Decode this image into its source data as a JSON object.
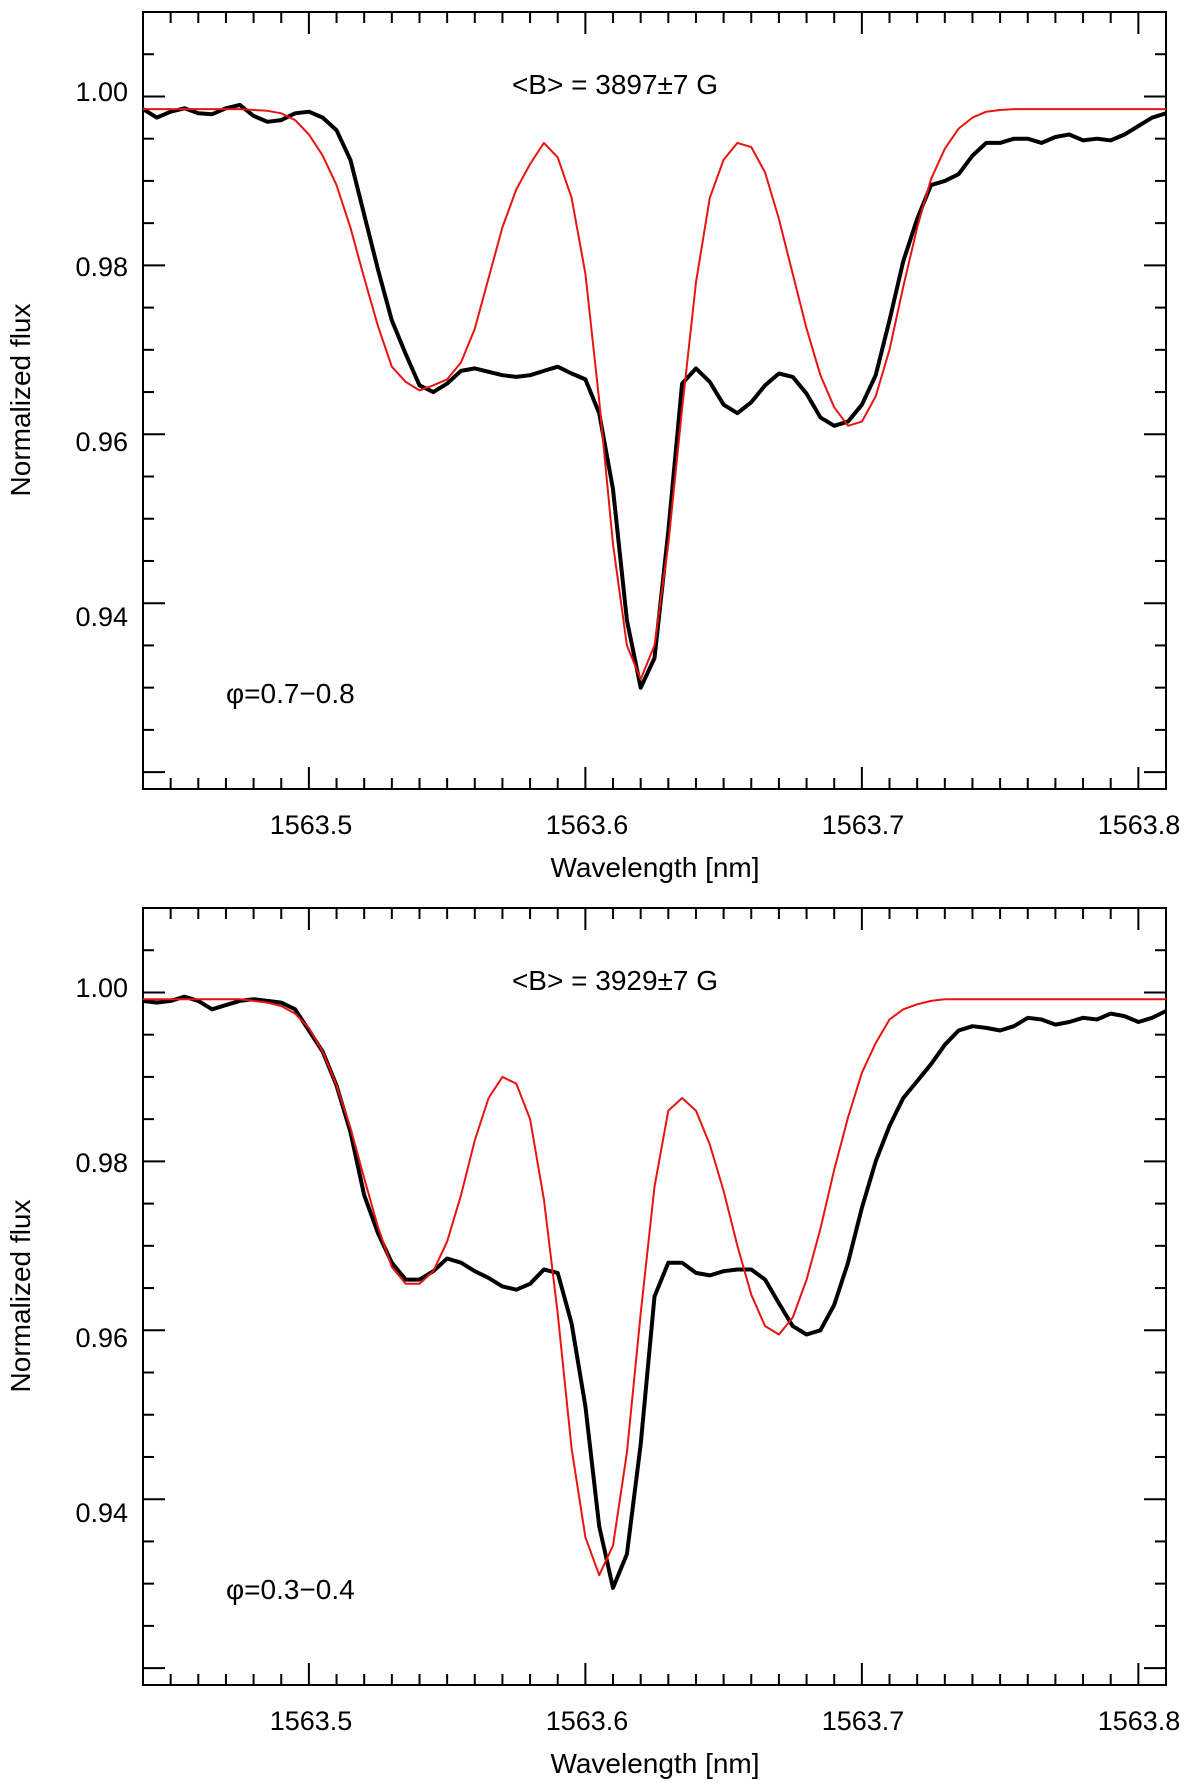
{
  "chart_data": [
    {
      "type": "line",
      "title": "",
      "xlabel": "Wavelength [nm]",
      "ylabel": "Normalized flux",
      "xlim": [
        1563.44,
        1563.81
      ],
      "ylim": [
        0.918,
        1.01
      ],
      "x_ticks": [
        "1563.5",
        "1563.6",
        "1563.7",
        "1563.8"
      ],
      "x_tick_values": [
        1563.5,
        1563.6,
        1563.7,
        1563.8
      ],
      "y_ticks": [
        "1.00",
        "0.98",
        "0.96",
        "0.94"
      ],
      "y_tick_values": [
        1.0,
        0.98,
        0.96,
        0.94
      ],
      "annotations": {
        "field": "<B> = 3897±7 G",
        "phase": "φ=0.7−0.8"
      },
      "series": [
        {
          "color": "#000000",
          "x": [
            1563.44,
            1563.445,
            1563.45,
            1563.455,
            1563.46,
            1563.465,
            1563.47,
            1563.475,
            1563.48,
            1563.485,
            1563.49,
            1563.495,
            1563.5,
            1563.505,
            1563.51,
            1563.515,
            1563.52,
            1563.525,
            1563.53,
            1563.535,
            1563.54,
            1563.545,
            1563.55,
            1563.555,
            1563.56,
            1563.565,
            1563.57,
            1563.575,
            1563.58,
            1563.585,
            1563.59,
            1563.595,
            1563.6,
            1563.605,
            1563.61,
            1563.615,
            1563.62,
            1563.625,
            1563.63,
            1563.635,
            1563.64,
            1563.645,
            1563.65,
            1563.655,
            1563.66,
            1563.665,
            1563.67,
            1563.675,
            1563.68,
            1563.685,
            1563.69,
            1563.695,
            1563.7,
            1563.705,
            1563.71,
            1563.715,
            1563.72,
            1563.725,
            1563.73,
            1563.735,
            1563.74,
            1563.745,
            1563.75,
            1563.755,
            1563.76,
            1563.765,
            1563.77,
            1563.775,
            1563.78,
            1563.785,
            1563.79,
            1563.795,
            1563.8,
            1563.805,
            1563.81
          ],
          "y": [
            0.9985,
            0.9975,
            0.9982,
            0.9986,
            0.998,
            0.9979,
            0.9986,
            0.999,
            0.9977,
            0.997,
            0.9972,
            0.998,
            0.9982,
            0.9975,
            0.996,
            0.9925,
            0.986,
            0.9795,
            0.9735,
            0.9695,
            0.9658,
            0.965,
            0.966,
            0.9675,
            0.9678,
            0.9674,
            0.967,
            0.9668,
            0.967,
            0.9675,
            0.968,
            0.9672,
            0.9665,
            0.9625,
            0.9535,
            0.938,
            0.93,
            0.9335,
            0.9485,
            0.966,
            0.9678,
            0.9662,
            0.9635,
            0.9625,
            0.9638,
            0.9658,
            0.9672,
            0.9668,
            0.9648,
            0.962,
            0.961,
            0.9615,
            0.9635,
            0.967,
            0.9735,
            0.9805,
            0.9855,
            0.9895,
            0.99,
            0.9908,
            0.993,
            0.9945,
            0.9945,
            0.995,
            0.995,
            0.9945,
            0.9952,
            0.9955,
            0.9948,
            0.995,
            0.9948,
            0.9955,
            0.9965,
            0.9975,
            0.998
          ]
        },
        {
          "color": "#e8140f",
          "x": [
            1563.44,
            1563.445,
            1563.45,
            1563.455,
            1563.46,
            1563.465,
            1563.47,
            1563.475,
            1563.48,
            1563.485,
            1563.49,
            1563.495,
            1563.5,
            1563.505,
            1563.51,
            1563.515,
            1563.52,
            1563.525,
            1563.53,
            1563.535,
            1563.54,
            1563.545,
            1563.55,
            1563.555,
            1563.56,
            1563.565,
            1563.57,
            1563.575,
            1563.58,
            1563.585,
            1563.59,
            1563.595,
            1563.6,
            1563.605,
            1563.61,
            1563.615,
            1563.62,
            1563.625,
            1563.63,
            1563.635,
            1563.64,
            1563.645,
            1563.65,
            1563.655,
            1563.66,
            1563.665,
            1563.67,
            1563.675,
            1563.68,
            1563.685,
            1563.69,
            1563.695,
            1563.7,
            1563.705,
            1563.71,
            1563.715,
            1563.72,
            1563.725,
            1563.73,
            1563.735,
            1563.74,
            1563.745,
            1563.75,
            1563.755,
            1563.76,
            1563.765,
            1563.77,
            1563.775,
            1563.78,
            1563.785,
            1563.79,
            1563.795,
            1563.8,
            1563.805,
            1563.81
          ],
          "y": [
            0.9985,
            0.9985,
            0.9985,
            0.9985,
            0.9985,
            0.9985,
            0.9985,
            0.9985,
            0.9984,
            0.9983,
            0.998,
            0.9972,
            0.9955,
            0.993,
            0.9895,
            0.9845,
            0.9785,
            0.9728,
            0.968,
            0.9662,
            0.9652,
            0.9658,
            0.9665,
            0.9685,
            0.9725,
            0.9785,
            0.9845,
            0.989,
            0.992,
            0.9945,
            0.9928,
            0.988,
            0.979,
            0.964,
            0.947,
            0.935,
            0.931,
            0.935,
            0.947,
            0.963,
            0.978,
            0.988,
            0.9925,
            0.9945,
            0.994,
            0.991,
            0.9855,
            0.979,
            0.9725,
            0.967,
            0.9632,
            0.961,
            0.9615,
            0.9645,
            0.97,
            0.9775,
            0.9845,
            0.9902,
            0.9938,
            0.9962,
            0.9975,
            0.9982,
            0.9984,
            0.9985,
            0.9985,
            0.9985,
            0.9985,
            0.9985,
            0.9985,
            0.9985,
            0.9985,
            0.9985,
            0.9985,
            0.9985,
            0.9985
          ]
        }
      ]
    },
    {
      "type": "line",
      "title": "",
      "xlabel": "Wavelength [nm]",
      "ylabel": "Normalized flux",
      "xlim": [
        1563.44,
        1563.81
      ],
      "ylim": [
        0.918,
        1.01
      ],
      "x_ticks": [
        "1563.5",
        "1563.6",
        "1563.7",
        "1563.8"
      ],
      "x_tick_values": [
        1563.5,
        1563.6,
        1563.7,
        1563.8
      ],
      "y_ticks": [
        "1.00",
        "0.98",
        "0.96",
        "0.94"
      ],
      "y_tick_values": [
        1.0,
        0.98,
        0.96,
        0.94
      ],
      "annotations": {
        "field": "<B> = 3929±7 G",
        "phase": "φ=0.3−0.4"
      },
      "series": [
        {
          "color": "#000000",
          "x": [
            1563.44,
            1563.445,
            1563.45,
            1563.455,
            1563.46,
            1563.465,
            1563.47,
            1563.475,
            1563.48,
            1563.485,
            1563.49,
            1563.495,
            1563.5,
            1563.505,
            1563.51,
            1563.515,
            1563.52,
            1563.525,
            1563.53,
            1563.535,
            1563.54,
            1563.545,
            1563.55,
            1563.555,
            1563.56,
            1563.565,
            1563.57,
            1563.575,
            1563.58,
            1563.585,
            1563.59,
            1563.595,
            1563.6,
            1563.605,
            1563.61,
            1563.615,
            1563.62,
            1563.625,
            1563.63,
            1563.635,
            1563.64,
            1563.645,
            1563.65,
            1563.655,
            1563.66,
            1563.665,
            1563.67,
            1563.675,
            1563.68,
            1563.685,
            1563.69,
            1563.695,
            1563.7,
            1563.705,
            1563.71,
            1563.715,
            1563.72,
            1563.725,
            1563.73,
            1563.735,
            1563.74,
            1563.745,
            1563.75,
            1563.755,
            1563.76,
            1563.765,
            1563.77,
            1563.775,
            1563.78,
            1563.785,
            1563.79,
            1563.795,
            1563.8,
            1563.805,
            1563.81
          ],
          "y": [
            0.999,
            0.9988,
            0.999,
            0.9995,
            0.999,
            0.998,
            0.9985,
            0.999,
            0.9992,
            0.999,
            0.9988,
            0.998,
            0.9955,
            0.993,
            0.989,
            0.9835,
            0.976,
            0.9715,
            0.968,
            0.966,
            0.966,
            0.967,
            0.9685,
            0.968,
            0.967,
            0.9662,
            0.9652,
            0.9648,
            0.9655,
            0.9672,
            0.9668,
            0.9608,
            0.951,
            0.9368,
            0.9295,
            0.9335,
            0.9465,
            0.964,
            0.968,
            0.968,
            0.9668,
            0.9665,
            0.967,
            0.9672,
            0.9672,
            0.966,
            0.9632,
            0.9605,
            0.9595,
            0.96,
            0.963,
            0.968,
            0.9745,
            0.98,
            0.9842,
            0.9875,
            0.9895,
            0.9915,
            0.9938,
            0.9955,
            0.996,
            0.9958,
            0.9955,
            0.996,
            0.997,
            0.9968,
            0.9962,
            0.9965,
            0.997,
            0.9968,
            0.9975,
            0.9972,
            0.9965,
            0.997,
            0.9978
          ]
        },
        {
          "color": "#e8140f",
          "x": [
            1563.44,
            1563.445,
            1563.45,
            1563.455,
            1563.46,
            1563.465,
            1563.47,
            1563.475,
            1563.48,
            1563.485,
            1563.49,
            1563.495,
            1563.5,
            1563.505,
            1563.51,
            1563.515,
            1563.52,
            1563.525,
            1563.53,
            1563.535,
            1563.54,
            1563.545,
            1563.55,
            1563.555,
            1563.56,
            1563.565,
            1563.57,
            1563.575,
            1563.58,
            1563.585,
            1563.59,
            1563.595,
            1563.6,
            1563.605,
            1563.61,
            1563.615,
            1563.62,
            1563.625,
            1563.63,
            1563.635,
            1563.64,
            1563.645,
            1563.65,
            1563.655,
            1563.66,
            1563.665,
            1563.67,
            1563.675,
            1563.68,
            1563.685,
            1563.69,
            1563.695,
            1563.7,
            1563.705,
            1563.71,
            1563.715,
            1563.72,
            1563.725,
            1563.73,
            1563.735,
            1563.74,
            1563.745,
            1563.75,
            1563.755,
            1563.76,
            1563.765,
            1563.77,
            1563.775,
            1563.78,
            1563.785,
            1563.79,
            1563.795,
            1563.8,
            1563.805,
            1563.81
          ],
          "y": [
            0.9992,
            0.9992,
            0.9992,
            0.9992,
            0.9992,
            0.9992,
            0.9992,
            0.9992,
            0.999,
            0.9988,
            0.9984,
            0.9975,
            0.9958,
            0.993,
            0.989,
            0.984,
            0.978,
            0.9722,
            0.9675,
            0.9655,
            0.9655,
            0.967,
            0.9705,
            0.976,
            0.9825,
            0.9875,
            0.99,
            0.9892,
            0.985,
            0.9755,
            0.962,
            0.946,
            0.9355,
            0.931,
            0.9345,
            0.9455,
            0.962,
            0.977,
            0.986,
            0.9875,
            0.986,
            0.982,
            0.9765,
            0.97,
            0.9642,
            0.9605,
            0.9595,
            0.9615,
            0.966,
            0.972,
            0.979,
            0.9852,
            0.9905,
            0.994,
            0.9968,
            0.998,
            0.9986,
            0.999,
            0.9992,
            0.9992,
            0.9992,
            0.9992,
            0.9992,
            0.9992,
            0.9992,
            0.9992,
            0.9992,
            0.9992,
            0.9992,
            0.9992,
            0.9992,
            0.9992,
            0.9992,
            0.9992,
            0.9992
          ]
        }
      ]
    }
  ]
}
